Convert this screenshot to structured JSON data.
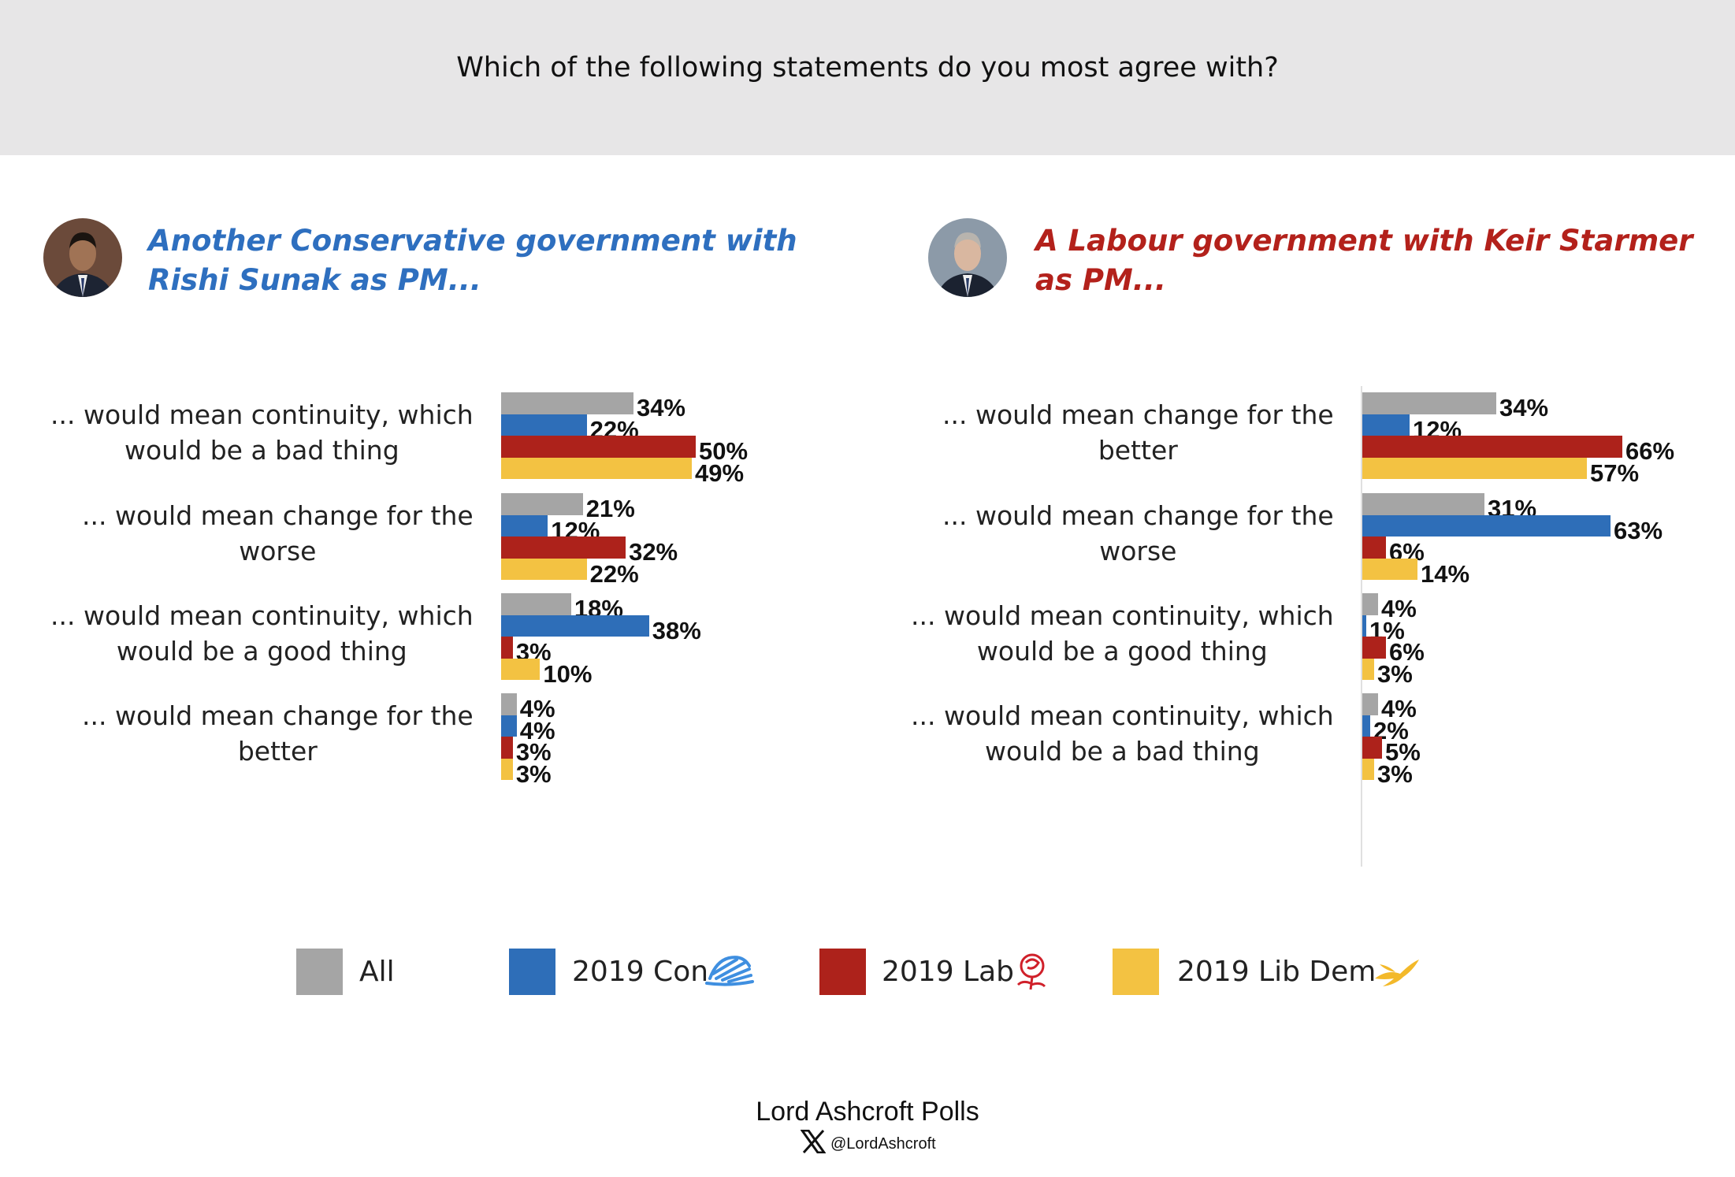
{
  "header": {
    "question": "Which of the following statements do you most agree with?"
  },
  "panels": [
    {
      "title_line1": "Another Conservative government with",
      "title_line2": "Rishi Sunak as PM...",
      "title_color": "#2e6fbf"
    },
    {
      "title_line1": "A Labour government with Keir Starmer",
      "title_line2": "as PM...",
      "title_color": "#b3211b"
    }
  ],
  "legend": [
    {
      "label": "All",
      "color": "#a5a5a5",
      "icon": ""
    },
    {
      "label": "2019 Con",
      "color": "#2e6eb8",
      "icon": "conservative-tree-icon"
    },
    {
      "label": "2019 Lab",
      "color": "#ad221b",
      "icon": "labour-rose-icon"
    },
    {
      "label": "2019 Lib Dem",
      "color": "#f3c242",
      "icon": "libdem-bird-icon"
    }
  ],
  "chart_data": [
    {
      "type": "bar",
      "orientation": "horizontal",
      "title": "Another Conservative government with Rishi Sunak as PM...",
      "categories": [
        [
          "... would mean continuity, which",
          "would be a bad thing"
        ],
        [
          "... would mean change for the",
          "worse"
        ],
        [
          "... would mean continuity, which",
          "would be a good thing"
        ],
        [
          "... would mean change for the",
          "better"
        ]
      ],
      "series": [
        {
          "name": "All",
          "values": [
            34,
            21,
            18,
            4
          ]
        },
        {
          "name": "2019 Con",
          "values": [
            22,
            12,
            38,
            4
          ]
        },
        {
          "name": "2019 Lab",
          "values": [
            50,
            32,
            3,
            3
          ]
        },
        {
          "name": "2019 Lib Dem",
          "values": [
            49,
            22,
            10,
            3
          ]
        }
      ],
      "unit": "%",
      "grid": false
    },
    {
      "type": "bar",
      "orientation": "horizontal",
      "title": "A Labour government with Keir Starmer as PM...",
      "categories": [
        [
          "... would mean change for the",
          "better"
        ],
        [
          "... would mean change for the",
          "worse"
        ],
        [
          "... would mean continuity, which",
          "would be a good thing"
        ],
        [
          "... would mean continuity, which",
          "would be a bad thing"
        ]
      ],
      "series": [
        {
          "name": "All",
          "values": [
            34,
            31,
            4,
            4
          ]
        },
        {
          "name": "2019 Con",
          "values": [
            12,
            63,
            1,
            2
          ]
        },
        {
          "name": "2019 Lab",
          "values": [
            66,
            6,
            6,
            5
          ]
        },
        {
          "name": "2019 Lib Dem",
          "values": [
            57,
            14,
            3,
            3
          ]
        }
      ],
      "unit": "%",
      "grid": false
    }
  ],
  "footer": {
    "brand": "Lord Ashcroft Polls",
    "handle": "@LordAshcroft"
  }
}
